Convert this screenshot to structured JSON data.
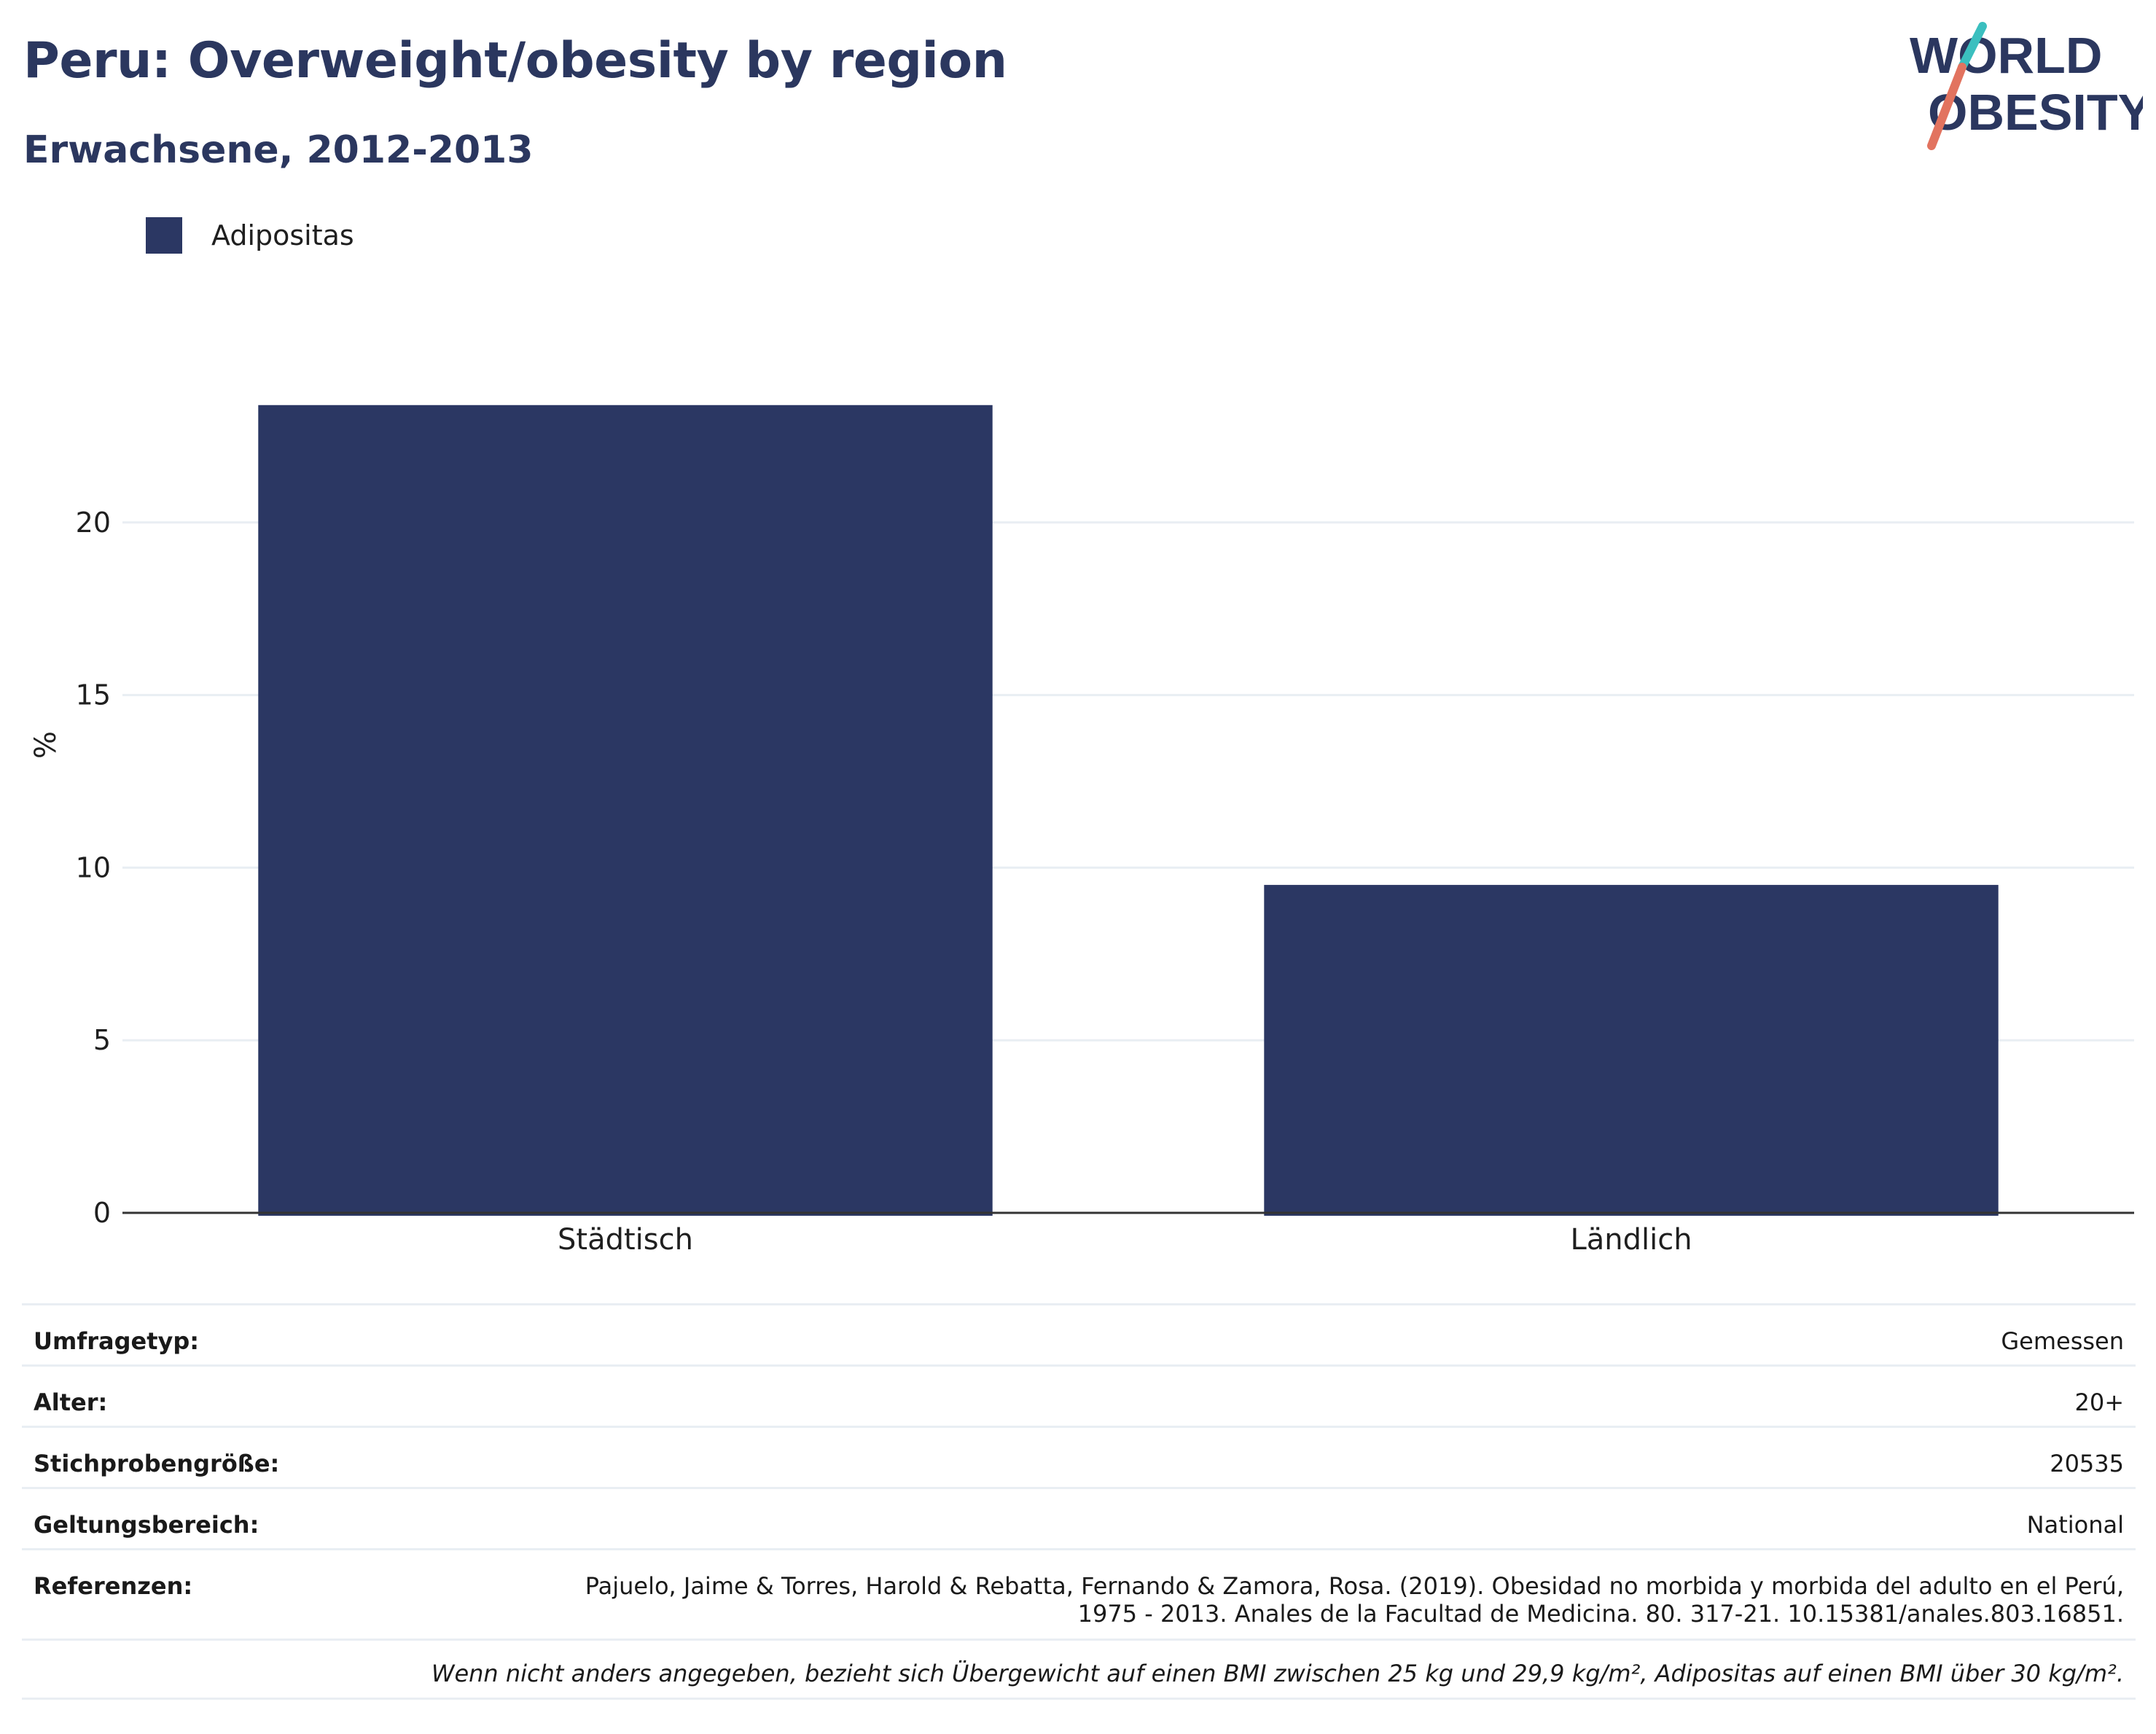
{
  "header": {
    "title": "Peru: Overweight/obesity by region",
    "subtitle": "Erwachsene, 2012-2013"
  },
  "logo": {
    "line1": "WORLD",
    "line2": "OBESITY",
    "colors": {
      "text": "#2b375f",
      "teal": "#3bbfbf",
      "coral": "#e2735f"
    }
  },
  "colors": {
    "bar": "#2b3763",
    "grid": "#e9eef3",
    "axis": "#333333"
  },
  "chart_data": {
    "type": "bar",
    "title": "Peru: Overweight/obesity by region",
    "subtitle": "Erwachsene, 2012-2013",
    "categories": [
      "Städtisch",
      "Ländlich"
    ],
    "series": [
      {
        "name": "Adipositas",
        "values": [
          23.4,
          9.5
        ],
        "color": "#2b3763"
      }
    ],
    "xlabel": "",
    "ylabel": "%",
    "ylim": [
      0,
      25
    ],
    "yticks": [
      0,
      5,
      10,
      15,
      20
    ],
    "grid": true,
    "legend_position": "top-left"
  },
  "meta": {
    "rows": [
      {
        "key": "Umfragetyp:",
        "value": "Gemessen"
      },
      {
        "key": "Alter:",
        "value": "20+"
      },
      {
        "key": "Stichprobengröße:",
        "value": "20535"
      },
      {
        "key": "Geltungsbereich:",
        "value": "National"
      },
      {
        "key": "Referenzen:",
        "value_line1": "Pajuelo, Jaime & Torres, Harold & Rebatta, Fernando & Zamora, Rosa. (2019). Obesidad no morbida y morbida del adulto en el Perú,",
        "value_line2": "1975 - 2013. Anales de la Facultad de Medicina. 80. 317-21. 10.15381/anales.803.16851."
      }
    ],
    "note": "Wenn nicht anders angegeben, bezieht sich Übergewicht auf einen BMI zwischen 25 kg und 29,9 kg/m², Adipositas auf einen BMI über 30 kg/m²."
  }
}
